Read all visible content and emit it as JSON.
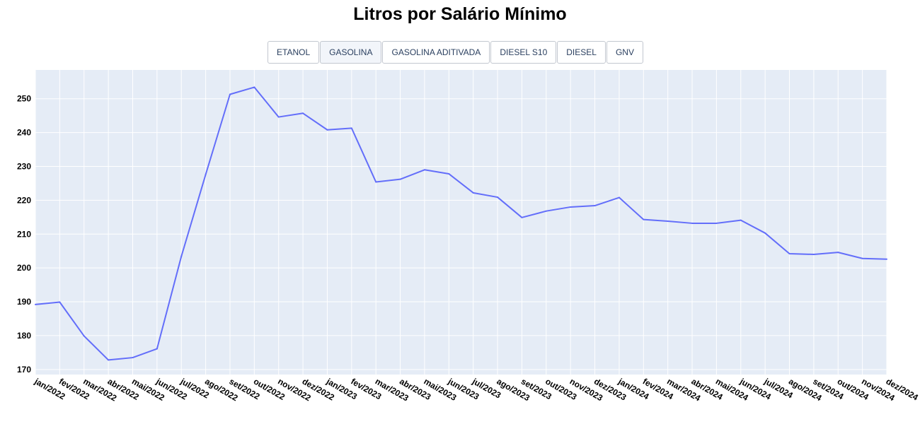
{
  "title": "Litros por Salário Mínimo",
  "buttons": [
    {
      "label": "ETANOL",
      "active": false
    },
    {
      "label": "GASOLINA",
      "active": true
    },
    {
      "label": "GASOLINA ADITIVADA",
      "active": false
    },
    {
      "label": "DIESEL S10",
      "active": false
    },
    {
      "label": "DIESEL",
      "active": false
    },
    {
      "label": "GNV",
      "active": false
    }
  ],
  "chart_data": {
    "type": "line",
    "title": "Litros por Salário Mínimo",
    "xlabel": "",
    "ylabel": "",
    "categories": [
      "jan/2022",
      "fev/2022",
      "mar/2022",
      "abr/2022",
      "mai/2022",
      "jun/2022",
      "jul/2022",
      "ago/2022",
      "set/2022",
      "out/2022",
      "nov/2022",
      "dez/2022",
      "jan/2023",
      "fev/2023",
      "mar/2023",
      "abr/2023",
      "mai/2023",
      "jun/2023",
      "jul/2023",
      "ago/2023",
      "set/2023",
      "out/2023",
      "nov/2023",
      "dez/2023",
      "jan/2024",
      "fev/2024",
      "mar/2024",
      "abr/2024",
      "mai/2024",
      "jun/2024",
      "jul/2024",
      "ago/2024",
      "set/2024",
      "out/2024",
      "nov/2024",
      "dez/2024"
    ],
    "series": [
      {
        "values": [
          189.2,
          189.9,
          179.9,
          172.8,
          173.5,
          176.1,
          203.4,
          227.6,
          251.3,
          253.4,
          244.6,
          245.7,
          240.8,
          241.3,
          225.4,
          226.2,
          229.0,
          227.8,
          222.2,
          220.9,
          214.9,
          216.8,
          218.0,
          218.4,
          220.8,
          214.3,
          213.8,
          213.2,
          213.2,
          214.1,
          210.3,
          204.2,
          204.0,
          204.6,
          202.8,
          202.6
        ],
        "color": "#636efa"
      }
    ],
    "ylim": [
      168.5,
      258.5
    ],
    "yticks": [
      170,
      180,
      190,
      200,
      210,
      220,
      230,
      240,
      250
    ],
    "grid": true,
    "plot_bg": "#e5ecf6",
    "grid_color": "#ffffff"
  }
}
